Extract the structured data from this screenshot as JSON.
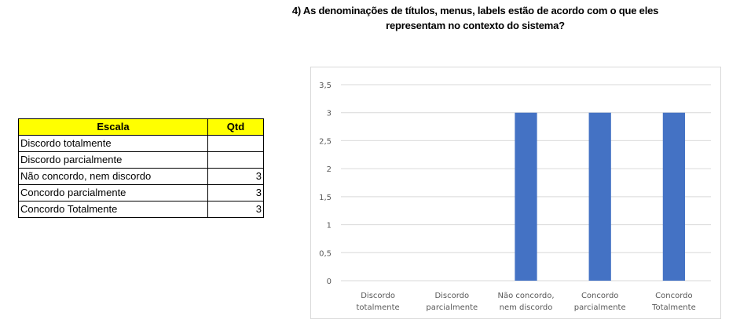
{
  "title_lines": [
    "4) As denominações de títulos, menus, labels estão de acordo com o que eles",
    "representam no contexto do sistema?"
  ],
  "table": {
    "headers": [
      "Escala",
      "Qtd"
    ],
    "rows": [
      {
        "label": "Discordo totalmente",
        "qtd": ""
      },
      {
        "label": "Discordo parcialmente",
        "qtd": ""
      },
      {
        "label": "Não concordo, nem discordo",
        "qtd": "3"
      },
      {
        "label": "Concordo parcialmente",
        "qtd": "3"
      },
      {
        "label": "Concordo Totalmente",
        "qtd": "3"
      }
    ],
    "header_color": "#ffff00"
  },
  "chart_data": {
    "type": "bar",
    "categories": [
      [
        "Discordo",
        "totalmente"
      ],
      [
        "Discordo",
        "parcialmente"
      ],
      [
        "Não concordo,",
        "nem discordo"
      ],
      [
        "Concordo",
        "parcialmente"
      ],
      [
        "Concordo",
        "Totalmente"
      ]
    ],
    "values": [
      0,
      0,
      3,
      3,
      3
    ],
    "ylim": [
      0,
      3.5
    ],
    "yticks": [
      "0",
      "0,5",
      "1",
      "1,5",
      "2",
      "2,5",
      "3",
      "3,5"
    ],
    "grid": true,
    "bar_color": "#4472c4",
    "title": "",
    "xlabel": "",
    "ylabel": ""
  }
}
